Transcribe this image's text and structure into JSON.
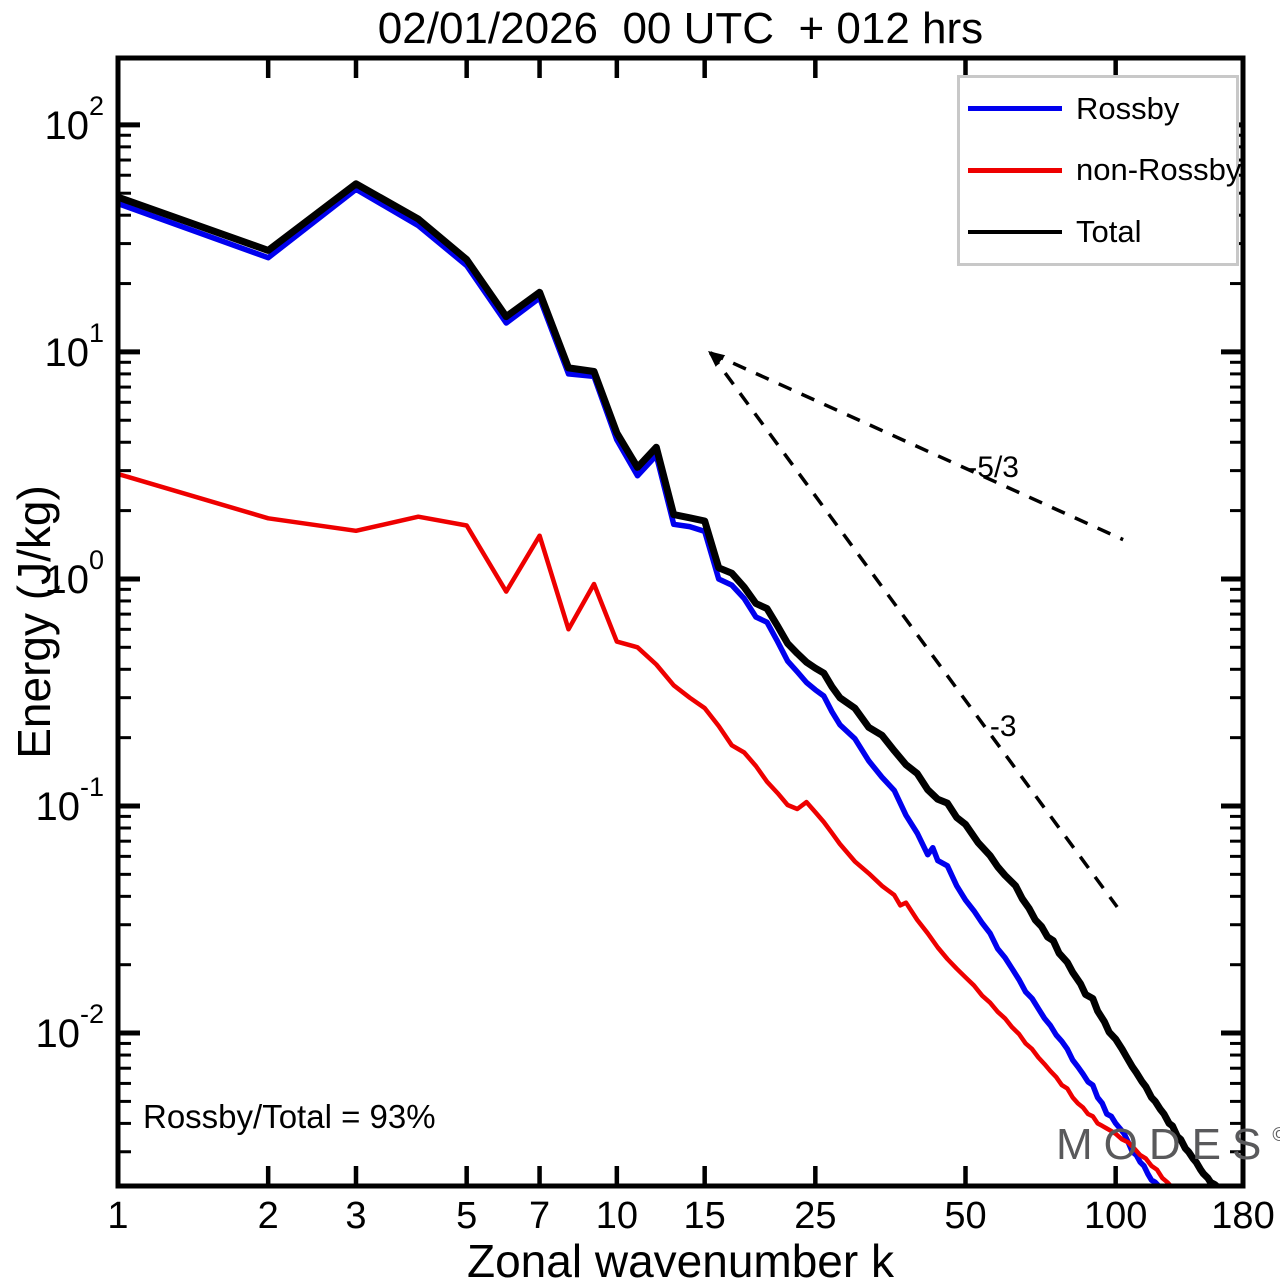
{
  "title": "02/01/2026  00 UTC  + 012 hrs",
  "axis": {
    "x_label": "Zonal wavenumber k",
    "y_label": "Energy (J/kg)"
  },
  "annotation": {
    "ratio_text": "Rossby/Total = 93%"
  },
  "watermark": {
    "text": "MODES",
    "symbol": "©"
  },
  "legend": {
    "items": [
      {
        "label": "Rossby",
        "color": "#0000ee",
        "sample_thickness": 5
      },
      {
        "label": "non-Rossby",
        "color": "#ee0000",
        "sample_thickness": 5
      },
      {
        "label": "Total",
        "color": "#000000",
        "sample_thickness": 4
      }
    ]
  },
  "chart_data": {
    "type": "line",
    "title": "02/01/2026  00 UTC  + 012 hrs",
    "xlabel": "Zonal wavenumber k",
    "ylabel": "Energy (J/kg)",
    "x_scale": "log",
    "y_scale": "log",
    "xlim": [
      1,
      180
    ],
    "ylim": [
      0.00212,
      197
    ],
    "grid": false,
    "legend_position": "upper-right",
    "x_ticks": [
      1,
      2,
      3,
      5,
      7,
      10,
      15,
      25,
      50,
      100,
      180
    ],
    "y_tick_exponents": [
      2,
      1,
      0,
      -1,
      -2
    ],
    "series": [
      {
        "name": "Rossby",
        "color": "#0000ee",
        "width": 5.5,
        "points": [
          [
            1,
            45
          ],
          [
            2,
            26
          ],
          [
            3,
            52
          ],
          [
            4,
            36
          ],
          [
            5,
            24
          ],
          [
            6,
            13.4
          ],
          [
            7,
            17.3
          ],
          [
            8,
            8.0
          ],
          [
            9,
            7.8
          ],
          [
            10,
            4.1
          ],
          [
            11,
            2.85
          ],
          [
            12,
            3.5
          ],
          [
            13,
            1.74
          ],
          [
            14,
            1.7
          ],
          [
            15,
            1.62
          ],
          [
            16,
            1.0
          ],
          [
            17,
            0.94
          ],
          [
            18,
            0.82
          ],
          [
            19,
            0.68
          ],
          [
            20,
            0.645
          ],
          [
            21,
            0.53
          ],
          [
            22,
            0.435
          ],
          [
            23,
            0.39
          ],
          [
            24,
            0.35
          ],
          [
            25,
            0.325
          ],
          [
            26,
            0.305
          ],
          [
            27,
            0.26
          ],
          [
            28,
            0.228
          ],
          [
            30,
            0.198
          ],
          [
            32,
            0.158
          ],
          [
            34,
            0.134
          ],
          [
            36,
            0.117
          ],
          [
            38,
            0.091
          ],
          [
            40,
            0.076
          ],
          [
            42,
            0.061
          ],
          [
            43,
            0.0655
          ],
          [
            44,
            0.0575
          ],
          [
            46,
            0.0545
          ],
          [
            48,
            0.0445
          ],
          [
            50,
            0.0385
          ],
          [
            52,
            0.0345
          ],
          [
            54,
            0.0305
          ],
          [
            56,
            0.0275
          ],
          [
            58,
            0.0235
          ],
          [
            60,
            0.0215
          ],
          [
            62,
            0.0192
          ],
          [
            64,
            0.0172
          ],
          [
            66,
            0.0152
          ],
          [
            68,
            0.0142
          ],
          [
            70,
            0.0128
          ],
          [
            72,
            0.0116
          ],
          [
            74,
            0.0108
          ],
          [
            76,
            0.0098
          ],
          [
            78,
            0.0092
          ],
          [
            80,
            0.0085
          ],
          [
            82,
            0.0076
          ],
          [
            84,
            0.0071
          ],
          [
            86,
            0.0066
          ],
          [
            88,
            0.0061
          ],
          [
            90,
            0.0059
          ],
          [
            92,
            0.0052
          ],
          [
            94,
            0.0049
          ],
          [
            96,
            0.0044
          ],
          [
            98,
            0.0043
          ],
          [
            100,
            0.004
          ],
          [
            102,
            0.0038
          ],
          [
            104,
            0.0036
          ],
          [
            106,
            0.0033
          ],
          [
            108,
            0.003
          ],
          [
            110,
            0.0029
          ],
          [
            112,
            0.0027
          ],
          [
            114,
            0.0026
          ],
          [
            116,
            0.0024
          ],
          [
            118,
            0.00225
          ],
          [
            120,
            0.0022
          ],
          [
            122,
            0.00212
          ]
        ]
      },
      {
        "name": "non-Rossby",
        "color": "#ee0000",
        "width": 4.5,
        "points": [
          [
            1,
            2.9
          ],
          [
            2,
            1.85
          ],
          [
            3,
            1.63
          ],
          [
            4,
            1.88
          ],
          [
            5,
            1.72
          ],
          [
            6,
            0.88
          ],
          [
            7,
            1.55
          ],
          [
            8,
            0.6
          ],
          [
            9,
            0.95
          ],
          [
            10,
            0.53
          ],
          [
            11,
            0.5
          ],
          [
            12,
            0.42
          ],
          [
            13,
            0.34
          ],
          [
            14,
            0.3
          ],
          [
            15,
            0.27
          ],
          [
            16,
            0.225
          ],
          [
            17,
            0.185
          ],
          [
            18,
            0.172
          ],
          [
            19,
            0.15
          ],
          [
            20,
            0.128
          ],
          [
            21,
            0.114
          ],
          [
            22,
            0.101
          ],
          [
            23,
            0.097
          ],
          [
            24,
            0.104
          ],
          [
            25,
            0.094
          ],
          [
            26,
            0.085
          ],
          [
            27,
            0.076
          ],
          [
            28,
            0.068
          ],
          [
            30,
            0.057
          ],
          [
            32,
            0.0505
          ],
          [
            34,
            0.0445
          ],
          [
            36,
            0.0405
          ],
          [
            37,
            0.0365
          ],
          [
            38,
            0.0375
          ],
          [
            40,
            0.0315
          ],
          [
            42,
            0.0275
          ],
          [
            44,
            0.0238
          ],
          [
            46,
            0.0212
          ],
          [
            48,
            0.0192
          ],
          [
            50,
            0.0176
          ],
          [
            52,
            0.0162
          ],
          [
            54,
            0.0146
          ],
          [
            56,
            0.0136
          ],
          [
            58,
            0.0124
          ],
          [
            60,
            0.0116
          ],
          [
            62,
            0.0106
          ],
          [
            64,
            0.0099
          ],
          [
            66,
            0.009
          ],
          [
            68,
            0.0085
          ],
          [
            70,
            0.0078
          ],
          [
            72,
            0.0073
          ],
          [
            74,
            0.0068
          ],
          [
            76,
            0.0064
          ],
          [
            78,
            0.0059
          ],
          [
            80,
            0.0057
          ],
          [
            82,
            0.0052
          ],
          [
            84,
            0.0049
          ],
          [
            86,
            0.0047
          ],
          [
            88,
            0.0044
          ],
          [
            90,
            0.0043
          ],
          [
            92,
            0.004
          ],
          [
            94,
            0.0039
          ],
          [
            96,
            0.0038
          ],
          [
            98,
            0.0037
          ],
          [
            100,
            0.0036
          ],
          [
            103,
            0.0034
          ],
          [
            106,
            0.0033
          ],
          [
            109,
            0.0031
          ],
          [
            112,
            0.0029
          ],
          [
            115,
            0.0028
          ],
          [
            118,
            0.0026
          ],
          [
            121,
            0.0025
          ],
          [
            124,
            0.0023
          ],
          [
            127,
            0.0022
          ],
          [
            129,
            0.00212
          ]
        ]
      },
      {
        "name": "Total",
        "color": "#000000",
        "width": 7,
        "points": [
          [
            1,
            48
          ],
          [
            2,
            28
          ],
          [
            3,
            55
          ],
          [
            4,
            38.5
          ],
          [
            5,
            25.5
          ],
          [
            6,
            14.3
          ],
          [
            7,
            18.3
          ],
          [
            8,
            8.5
          ],
          [
            9,
            8.2
          ],
          [
            10,
            4.4
          ],
          [
            11,
            3.1
          ],
          [
            12,
            3.8
          ],
          [
            13,
            1.92
          ],
          [
            14,
            1.86
          ],
          [
            15,
            1.8
          ],
          [
            16,
            1.12
          ],
          [
            17,
            1.06
          ],
          [
            18,
            0.92
          ],
          [
            19,
            0.78
          ],
          [
            20,
            0.74
          ],
          [
            21,
            0.62
          ],
          [
            22,
            0.52
          ],
          [
            23,
            0.47
          ],
          [
            24,
            0.43
          ],
          [
            25,
            0.405
          ],
          [
            26,
            0.385
          ],
          [
            27,
            0.335
          ],
          [
            28,
            0.3
          ],
          [
            30,
            0.27
          ],
          [
            32,
            0.222
          ],
          [
            34,
            0.205
          ],
          [
            36,
            0.175
          ],
          [
            38,
            0.152
          ],
          [
            40,
            0.139
          ],
          [
            42,
            0.118
          ],
          [
            44,
            0.107
          ],
          [
            46,
            0.103
          ],
          [
            48,
            0.089
          ],
          [
            50,
            0.083
          ],
          [
            53,
            0.069
          ],
          [
            56,
            0.0605
          ],
          [
            58,
            0.054
          ],
          [
            60,
            0.0495
          ],
          [
            63,
            0.0445
          ],
          [
            65,
            0.039
          ],
          [
            67,
            0.0355
          ],
          [
            69,
            0.0315
          ],
          [
            71,
            0.0295
          ],
          [
            73,
            0.0265
          ],
          [
            75,
            0.0255
          ],
          [
            77,
            0.0225
          ],
          [
            80,
            0.0205
          ],
          [
            82,
            0.0185
          ],
          [
            85,
            0.0165
          ],
          [
            87,
            0.0148
          ],
          [
            90,
            0.0142
          ],
          [
            92,
            0.0125
          ],
          [
            95,
            0.0112
          ],
          [
            97,
            0.0101
          ],
          [
            100,
            0.0094
          ],
          [
            103,
            0.0085
          ],
          [
            105,
            0.0079
          ],
          [
            108,
            0.0071
          ],
          [
            110,
            0.0067
          ],
          [
            113,
            0.0061
          ],
          [
            115,
            0.0058
          ],
          [
            118,
            0.0052
          ],
          [
            120,
            0.005
          ],
          [
            123,
            0.0046
          ],
          [
            125,
            0.0044
          ],
          [
            128,
            0.004
          ],
          [
            130,
            0.0039
          ],
          [
            133,
            0.0035
          ],
          [
            135,
            0.0034
          ],
          [
            138,
            0.0031
          ],
          [
            140,
            0.003
          ],
          [
            143,
            0.0028
          ],
          [
            145,
            0.0027
          ],
          [
            148,
            0.0025
          ],
          [
            150,
            0.0024
          ],
          [
            153,
            0.0023
          ],
          [
            155,
            0.0022
          ],
          [
            158,
            0.00215
          ],
          [
            160,
            0.0021
          ]
        ]
      }
    ],
    "reference_lines": [
      {
        "label": "-5/3",
        "from": [
          15.4,
          9.9
        ],
        "to": [
          103.5,
          1.49
        ],
        "label_at": [
          56.8,
          2.81
        ]
      },
      {
        "label": "-3",
        "from": [
          15.4,
          9.9
        ],
        "to": [
          100.7,
          0.0359
        ],
        "label_at": [
          59.5,
          0.203
        ]
      }
    ],
    "arrow_at": [
      15.4,
      9.9
    ]
  }
}
